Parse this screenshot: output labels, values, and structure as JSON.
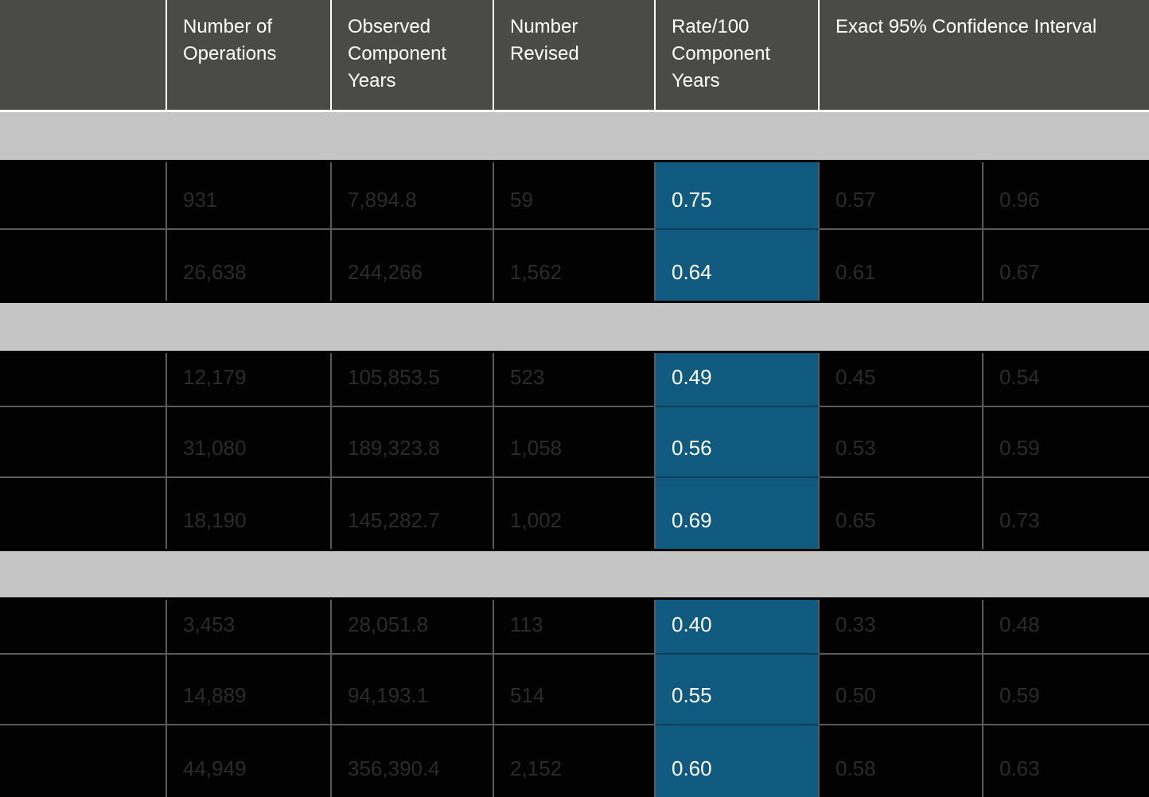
{
  "colors": {
    "header_bg": "#4a4a48",
    "header_text": "#ffffff",
    "band_bg": "#c5c5c5",
    "row_bg": "#020202",
    "row_text": "#2b2b2b",
    "rate_bg": "#115a7f",
    "rate_text": "#ffffff",
    "grid_line": "#5a5a5a",
    "header_divider": "#ffffff"
  },
  "table": {
    "header": {
      "label": "",
      "operations": "Number of Operations",
      "observed": "Observed Component Years",
      "revised": "Number Revised",
      "rate": "Rate/100 Component Years",
      "ci": "Exact 95% Confidence Interval"
    },
    "sections": [
      {
        "rows": [
          {
            "label": "",
            "operations": "931",
            "component_years": "7,894.8",
            "revised": "59",
            "rate": "0.75",
            "ci_low": "0.57",
            "ci_high": "0.96"
          },
          {
            "label": "",
            "operations": "26,638",
            "component_years": "244,266",
            "revised": "1,562",
            "rate": "0.64",
            "ci_low": "0.61",
            "ci_high": "0.67"
          }
        ]
      },
      {
        "rows": [
          {
            "label": "",
            "operations": "12,179",
            "component_years": "105,853.5",
            "revised": "523",
            "rate": "0.49",
            "ci_low": "0.45",
            "ci_high": "0.54"
          },
          {
            "label": "",
            "operations": "31,080",
            "component_years": "189,323.8",
            "revised": "1,058",
            "rate": "0.56",
            "ci_low": "0.53",
            "ci_high": "0.59"
          },
          {
            "label": "",
            "operations": "18,190",
            "component_years": "145,282.7",
            "revised": "1,002",
            "rate": "0.69",
            "ci_low": "0.65",
            "ci_high": "0.73"
          }
        ]
      },
      {
        "rows": [
          {
            "label": "",
            "operations": "3,453",
            "component_years": "28,051.8",
            "revised": "113",
            "rate": "0.40",
            "ci_low": "0.33",
            "ci_high": "0.48"
          },
          {
            "label": "",
            "operations": "14,889",
            "component_years": "94,193.1",
            "revised": "514",
            "rate": "0.55",
            "ci_low": "0.50",
            "ci_high": "0.59"
          },
          {
            "label": "",
            "operations": "44,949",
            "component_years": "356,390.4",
            "revised": "2,152",
            "rate": "0.60",
            "ci_low": "0.58",
            "ci_high": "0.63"
          }
        ]
      }
    ]
  },
  "chart_data": {
    "type": "table",
    "columns": [
      "Number of Operations",
      "Observed Component Years",
      "Number Revised",
      "Rate/100 Component Years",
      "Exact 95% CI lower",
      "Exact 95% CI upper"
    ],
    "rows": [
      [
        931,
        7894.8,
        59,
        0.75,
        0.57,
        0.96
      ],
      [
        26638,
        244266,
        1562,
        0.64,
        0.61,
        0.67
      ],
      [
        12179,
        105853.5,
        523,
        0.49,
        0.45,
        0.54
      ],
      [
        31080,
        189323.8,
        1058,
        0.56,
        0.53,
        0.59
      ],
      [
        18190,
        145282.7,
        1002,
        0.69,
        0.65,
        0.73
      ],
      [
        3453,
        28051.8,
        113,
        0.4,
        0.33,
        0.48
      ],
      [
        14889,
        94193.1,
        514,
        0.55,
        0.5,
        0.59
      ],
      [
        44949,
        356390.4,
        2152,
        0.6,
        0.58,
        0.63
      ]
    ]
  }
}
